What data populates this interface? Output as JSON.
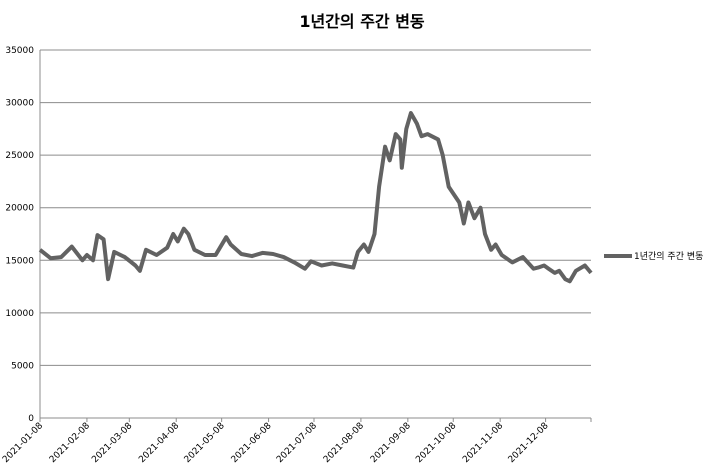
{
  "chart_data": {
    "type": "line",
    "title": "1년간의 주간 변동",
    "x": [
      "2021-01-08",
      "2021-01-15",
      "2021-01-22",
      "2021-01-29",
      "2021-02-05",
      "2021-02-08",
      "2021-02-12",
      "2021-02-15",
      "2021-02-19",
      "2021-02-22",
      "2021-02-26",
      "2021-03-05",
      "2021-03-12",
      "2021-03-15",
      "2021-03-19",
      "2021-03-26",
      "2021-04-02",
      "2021-04-06",
      "2021-04-09",
      "2021-04-13",
      "2021-04-16",
      "2021-04-20",
      "2021-04-27",
      "2021-05-04",
      "2021-05-11",
      "2021-05-14",
      "2021-05-21",
      "2021-05-28",
      "2021-06-04",
      "2021-06-11",
      "2021-06-18",
      "2021-06-25",
      "2021-07-02",
      "2021-07-06",
      "2021-07-13",
      "2021-07-20",
      "2021-07-27",
      "2021-08-03",
      "2021-08-06",
      "2021-08-10",
      "2021-08-13",
      "2021-08-17",
      "2021-08-20",
      "2021-08-24",
      "2021-08-27",
      "2021-08-31",
      "2021-09-03",
      "2021-09-04",
      "2021-09-07",
      "2021-09-10",
      "2021-09-14",
      "2021-09-17",
      "2021-09-21",
      "2021-09-28",
      "2021-10-01",
      "2021-10-05",
      "2021-10-12",
      "2021-10-15",
      "2021-10-18",
      "2021-10-22",
      "2021-10-26",
      "2021-10-29",
      "2021-11-02",
      "2021-11-05",
      "2021-11-09",
      "2021-11-16",
      "2021-11-23",
      "2021-11-30",
      "2021-12-03",
      "2021-12-07",
      "2021-12-10",
      "2021-12-14",
      "2021-12-17",
      "2021-12-21",
      "2021-12-24",
      "2021-12-28",
      "2022-01-03",
      "2022-01-07"
    ],
    "series": [
      {
        "name": "1년간의 주간 변동",
        "color": "#626262",
        "values": [
          16000,
          15200,
          15300,
          16300,
          15000,
          15500,
          15000,
          17400,
          17000,
          13200,
          15800,
          15300,
          14500,
          14000,
          16000,
          15500,
          16200,
          17500,
          16800,
          18000,
          17500,
          16000,
          15500,
          15500,
          17200,
          16500,
          15600,
          15400,
          15700,
          15600,
          15300,
          14800,
          14200,
          14900,
          14500,
          14700,
          14500,
          14300,
          15800,
          16500,
          15800,
          17500,
          22000,
          25800,
          24500,
          27000,
          26500,
          23800,
          27500,
          29000,
          28000,
          26800,
          27000,
          26500,
          25000,
          22000,
          20500,
          18500,
          20500,
          19000,
          20000,
          17500,
          16000,
          16500,
          15500,
          14800,
          15300,
          14200,
          14300,
          14500,
          14200,
          13800,
          14000,
          13200,
          13000,
          14000,
          14500,
          13800
        ]
      }
    ],
    "xlim": [
      "2021-01-08",
      "2022-01-07"
    ],
    "xticks": [
      "2021-01-08",
      "2021-02-08",
      "2021-03-08",
      "2021-04-08",
      "2021-05-08",
      "2021-06-08",
      "2021-07-08",
      "2021-08-08",
      "2021-09-08",
      "2021-10-08",
      "2021-11-08",
      "2021-12-08"
    ],
    "ylim": [
      0,
      35000
    ],
    "yticks": [
      0,
      5000,
      10000,
      15000,
      20000,
      25000,
      30000,
      35000
    ],
    "grid": true,
    "legend": "right"
  }
}
